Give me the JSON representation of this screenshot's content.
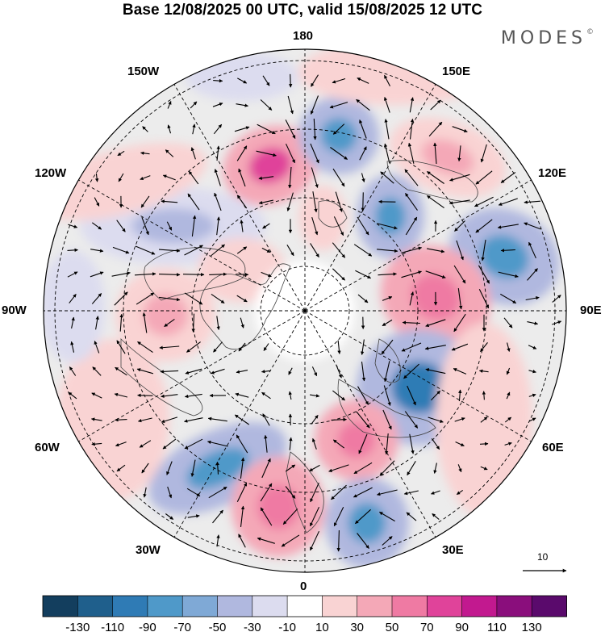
{
  "title": "Base 12/08/2025 00 UTC, valid 15/08/2025 12 UTC",
  "brand": {
    "name": "MODES",
    "mark": "©"
  },
  "longitude_labels": {
    "lon_180": "180",
    "lon_150w": "150W",
    "lon_120w": "120W",
    "lon_90w": "90W",
    "lon_60w": "60W",
    "lon_30w": "30W",
    "lon_0": "0",
    "lon_30e": "30E",
    "lon_60e": "60E",
    "lon_90e": "90E",
    "lon_120e": "120E",
    "lon_150e": "150E"
  },
  "vector_scale": {
    "label": "10"
  },
  "colorbar": {
    "ticks": [
      "-130",
      "-110",
      "-90",
      "-70",
      "-50",
      "-30",
      "-10",
      "10",
      "30",
      "50",
      "70",
      "90",
      "110",
      "130"
    ],
    "colors": [
      "#133e5e",
      "#1f5f8c",
      "#2f7bb5",
      "#4f99c9",
      "#7fa9d6",
      "#b0b8df",
      "#dcdcef",
      "#ffffff",
      "#f9d3d3",
      "#f4a8b7",
      "#ef7aa3",
      "#e0439a",
      "#c2198f",
      "#8a0e7c",
      "#5a0a6c"
    ]
  },
  "map_colors": {
    "land_bg": "#ececec",
    "graticule": "#000000",
    "coast": "#444444"
  }
}
